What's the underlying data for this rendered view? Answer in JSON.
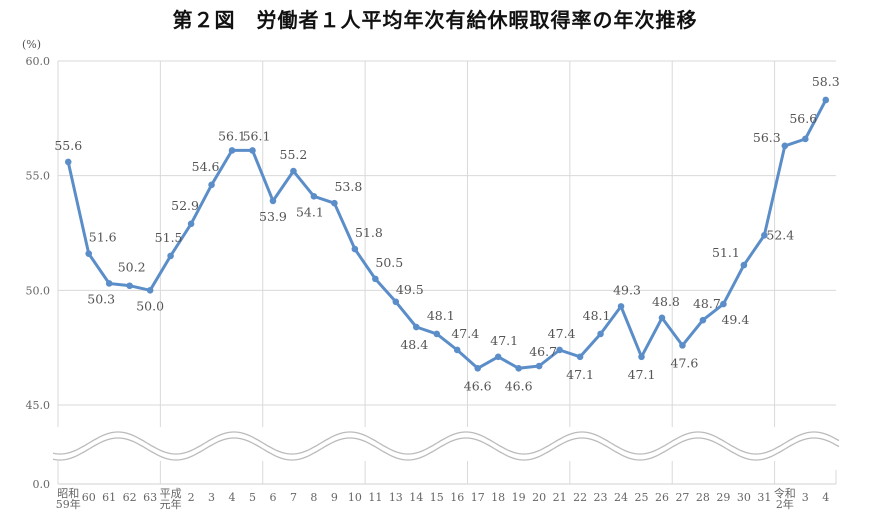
{
  "title": "第２図　労働者１人平均年次有給休暇取得率の年次推移",
  "unit": "(%)",
  "colors": {
    "line": "#5b8ec9",
    "grid": "#d9d9d9",
    "break": "#bbbbbb"
  },
  "chart_data": {
    "type": "line",
    "title": "第２図　労働者１人平均年次有給休暇取得率の年次推移",
    "xlabel": "",
    "ylabel": "(%)",
    "ylim": [
      45.0,
      60.0
    ],
    "y_ticks": [
      "60.0",
      "55.0",
      "50.0",
      "45.0",
      "0.0"
    ],
    "axis_break": "between 45.0 and 0.0",
    "grid": true,
    "legend": "none",
    "categories": [
      "昭和59年",
      "60",
      "61",
      "62",
      "63",
      "平成元年",
      "2",
      "3",
      "4",
      "5",
      "6",
      "7",
      "8",
      "9",
      "10",
      "11",
      "13",
      "14",
      "15",
      "16",
      "17",
      "18",
      "19",
      "20",
      "21",
      "22",
      "23",
      "24",
      "25",
      "26",
      "27",
      "28",
      "29",
      "30",
      "31",
      "令和2年",
      "3",
      "4"
    ],
    "series": [
      {
        "name": "年次有給休暇取得率",
        "values": [
          55.6,
          51.6,
          50.3,
          50.2,
          50.0,
          51.5,
          52.9,
          54.6,
          56.1,
          56.1,
          53.9,
          55.2,
          54.1,
          53.8,
          51.8,
          50.5,
          49.5,
          48.4,
          48.1,
          47.4,
          46.6,
          47.1,
          46.6,
          46.7,
          47.4,
          47.1,
          48.1,
          49.3,
          47.1,
          48.8,
          47.6,
          48.7,
          49.4,
          51.1,
          52.4,
          56.3,
          56.6,
          58.3
        ]
      }
    ]
  }
}
